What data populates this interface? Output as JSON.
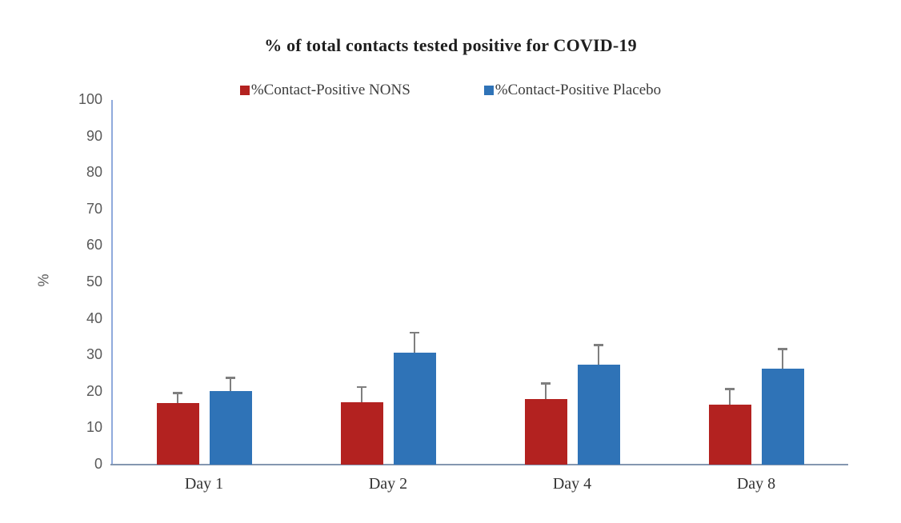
{
  "chart_data": {
    "type": "bar",
    "title": "% of total contacts tested positive for COVID-19",
    "ylabel": "%",
    "xlabel": "",
    "ylim": [
      0,
      100
    ],
    "ytick_step": 10,
    "grid": false,
    "legend_position": "top-center",
    "error_bars": "upper-only",
    "categories": [
      "Day 1",
      "Day 2",
      "Day 4",
      "Day 8"
    ],
    "series": [
      {
        "name": "%Contact-Positive NONS",
        "color": "#b32220",
        "values": [
          16.8,
          17.2,
          18.0,
          16.5
        ],
        "errors_plus": [
          2.9,
          4.1,
          4.3,
          4.3
        ]
      },
      {
        "name": "%Contact-Positive Placebo",
        "color": "#2f73b7",
        "values": [
          20.1,
          30.7,
          27.4,
          26.3
        ],
        "errors_plus": [
          3.8,
          5.5,
          5.4,
          5.4
        ]
      }
    ],
    "colors": {
      "error_bar": "#7f7f7f",
      "y_axis_line": "#8faadc",
      "x_axis_line": "#8496b0",
      "tick_label": "#595959",
      "category_label": "#333333",
      "title_text": "#1f1f1f",
      "legend_text": "#3d3d3d"
    }
  }
}
